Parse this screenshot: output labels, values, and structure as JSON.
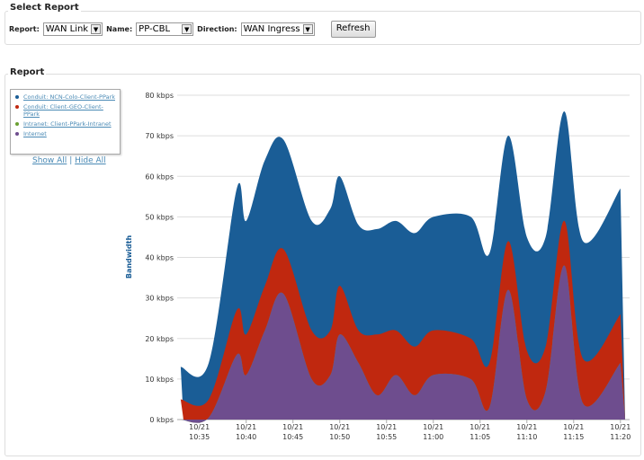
{
  "select_report": {
    "title": "Select Report",
    "report_label": "Report:",
    "report_value": "WAN Link",
    "name_label": "Name:",
    "name_value": "PP-CBL",
    "direction_label": "Direction:",
    "direction_value": "WAN Ingress",
    "refresh_label": "Refresh"
  },
  "report": {
    "title": "Report",
    "legend": [
      {
        "label": "Conduit: NCN-Colo-Client-PPark",
        "color": "#1a5d96"
      },
      {
        "label": "Conduit: Client-GEO-Client-PPark",
        "color": "#c0280f"
      },
      {
        "label": "Intranet: Client-PPark-Intranet",
        "color": "#6aa032"
      },
      {
        "label": "Internet",
        "color": "#6e4d8e"
      }
    ],
    "show_all": "Show All",
    "separator": "|",
    "hide_all": "Hide All"
  },
  "chart_data": {
    "type": "area",
    "stacked": true,
    "ylabel": "Bandwidth",
    "ylim": [
      0,
      80
    ],
    "grid": true,
    "yticks": [
      "0 kbps",
      "10 kbps",
      "20 kbps",
      "30 kbps",
      "40 kbps",
      "50 kbps",
      "60 kbps",
      "70 kbps",
      "80 kbps"
    ],
    "xticks": [
      [
        "10/21",
        "10:35"
      ],
      [
        "10/21",
        "10:40"
      ],
      [
        "10/21",
        "10:45"
      ],
      [
        "10/21",
        "10:50"
      ],
      [
        "10/21",
        "10:55"
      ],
      [
        "10/21",
        "11:00"
      ],
      [
        "10/21",
        "11:05"
      ],
      [
        "10/21",
        "11:10"
      ],
      [
        "10/21",
        "11:15"
      ],
      [
        "10/21",
        "11:20"
      ]
    ],
    "x": [
      "10:33",
      "10:36",
      "10:39",
      "10:40",
      "10:42",
      "10:44",
      "10:47",
      "10:49",
      "10:50",
      "10:52",
      "10:54",
      "10:56",
      "10:58",
      "11:00",
      "11:04",
      "11:06",
      "11:08",
      "11:10",
      "11:12",
      "11:14",
      "11:16",
      "11:20"
    ],
    "series": [
      {
        "name": "Internet",
        "values": [
          0,
          0.5,
          16,
          11,
          22,
          31,
          10,
          11,
          21,
          14,
          6,
          11,
          6,
          11,
          10,
          3,
          32,
          5,
          7,
          38,
          4,
          14
        ]
      },
      {
        "name": "Intranet: Client-PPark-Intranet",
        "values": [
          0,
          0,
          0,
          0,
          0,
          0,
          0,
          0,
          0,
          0,
          0,
          0,
          0,
          0,
          0,
          0,
          0,
          0,
          0,
          0,
          0,
          0
        ]
      },
      {
        "name": "Conduit: Client-GEO-Client-PPark",
        "values": [
          5,
          4.5,
          11,
          10,
          11,
          11,
          12,
          11,
          12,
          8,
          15,
          11,
          12,
          11,
          10,
          11,
          12,
          12,
          11,
          11,
          11,
          12
        ]
      },
      {
        "name": "Conduit: NCN-Colo-Client-PPark",
        "values": [
          8,
          9,
          30,
          28,
          31,
          27,
          27,
          30,
          27,
          26,
          26,
          27,
          28,
          28,
          30,
          27,
          26,
          28,
          27,
          27,
          29,
          31
        ]
      }
    ]
  }
}
